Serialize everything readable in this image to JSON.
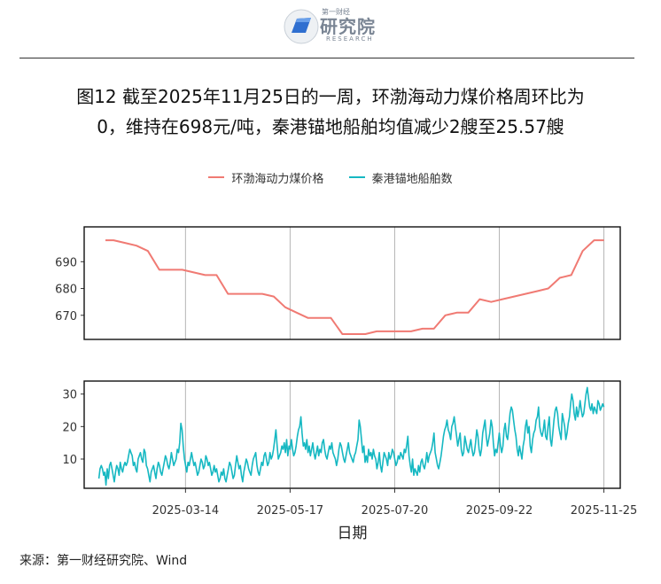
{
  "header": {
    "logo_top": "第一财经",
    "logo_cn": "研究院",
    "logo_en": "RESEARCH"
  },
  "title": {
    "line1": "图12  截至2025年11月25日的一周，环渤海动力煤价格周环比为",
    "line2": "0，维持在698元/吨，秦港锚地船舶均值减少2艘至25.57艘"
  },
  "source": "来源：第一财经研究院、Wind",
  "colors": {
    "price": "#F07A73",
    "ships": "#16B8C2",
    "grid": "#b5b5b5"
  },
  "chart_data": {
    "type": "line",
    "xlabel": "日期",
    "x_ticks": [
      "2025-03-14",
      "2025-05-17",
      "2025-07-20",
      "2025-09-22",
      "2025-11-25"
    ],
    "legend": [
      "环渤海动力煤价格",
      "秦港锚地船舶数"
    ],
    "panels": [
      {
        "series_name": "环渤海动力煤价格",
        "ylim": [
          661,
          703
        ],
        "y_ticks": [
          670,
          680,
          690
        ],
        "points": [
          [
            "2025-01-24",
            698
          ],
          [
            "2025-01-29",
            698
          ],
          [
            "2025-02-05",
            697
          ],
          [
            "2025-02-12",
            696
          ],
          [
            "2025-02-19",
            694
          ],
          [
            "2025-02-26",
            687
          ],
          [
            "2025-03-05",
            687
          ],
          [
            "2025-03-12",
            687
          ],
          [
            "2025-03-19",
            686
          ],
          [
            "2025-03-26",
            685
          ],
          [
            "2025-04-02",
            685
          ],
          [
            "2025-04-09",
            678
          ],
          [
            "2025-04-16",
            678
          ],
          [
            "2025-04-23",
            678
          ],
          [
            "2025-04-30",
            678
          ],
          [
            "2025-05-07",
            677
          ],
          [
            "2025-05-14",
            673
          ],
          [
            "2025-05-21",
            671
          ],
          [
            "2025-05-28",
            669
          ],
          [
            "2025-06-04",
            669
          ],
          [
            "2025-06-11",
            669
          ],
          [
            "2025-06-18",
            663
          ],
          [
            "2025-06-25",
            663
          ],
          [
            "2025-07-02",
            663
          ],
          [
            "2025-07-09",
            664
          ],
          [
            "2025-07-16",
            664
          ],
          [
            "2025-07-23",
            664
          ],
          [
            "2025-07-30",
            664
          ],
          [
            "2025-08-06",
            665
          ],
          [
            "2025-08-13",
            665
          ],
          [
            "2025-08-20",
            670
          ],
          [
            "2025-08-27",
            671
          ],
          [
            "2025-09-03",
            671
          ],
          [
            "2025-09-10",
            676
          ],
          [
            "2025-09-17",
            675
          ],
          [
            "2025-09-24",
            676
          ],
          [
            "2025-10-01",
            677
          ],
          [
            "2025-10-08",
            678
          ],
          [
            "2025-10-15",
            679
          ],
          [
            "2025-10-22",
            680
          ],
          [
            "2025-10-29",
            684
          ],
          [
            "2025-11-05",
            685
          ],
          [
            "2025-11-12",
            694
          ],
          [
            "2025-11-19",
            698
          ],
          [
            "2025-11-25",
            698
          ]
        ]
      },
      {
        "series_name": "秦港锚地船舶数",
        "ylim": [
          1,
          34
        ],
        "y_ticks": [
          10,
          20,
          30
        ],
        "start_date": "2025-01-20",
        "values": [
          4,
          7,
          8,
          7,
          5,
          6,
          2,
          7,
          4,
          8,
          9,
          7,
          5,
          3,
          6,
          8,
          7,
          5,
          9,
          7,
          6,
          8,
          9,
          8,
          9,
          11,
          13,
          12,
          11,
          8,
          9,
          7,
          6,
          10,
          11,
          12,
          10,
          9,
          13,
          12,
          8,
          7,
          5,
          3,
          6,
          7,
          8,
          6,
          4,
          7,
          9,
          8,
          6,
          5,
          7,
          9,
          11,
          10,
          8,
          7,
          9,
          12,
          10,
          8,
          9,
          10,
          13,
          12,
          15,
          21,
          19,
          14,
          10,
          8,
          6,
          9,
          8,
          10,
          12,
          10,
          8,
          9,
          7,
          5,
          6,
          8,
          10,
          9,
          7,
          8,
          11,
          10,
          8,
          9,
          7,
          5,
          6,
          8,
          6,
          7,
          5,
          3,
          4,
          6,
          5,
          7,
          4,
          3,
          5,
          7,
          9,
          8,
          6,
          4,
          5,
          8,
          11,
          9,
          7,
          8,
          5,
          3,
          6,
          8,
          10,
          9,
          7,
          6,
          5,
          8,
          10,
          11,
          12,
          8,
          6,
          5,
          7,
          9,
          8,
          11,
          12,
          10,
          8,
          9,
          12,
          10,
          11,
          13,
          16,
          19,
          14,
          10,
          11,
          12,
          14,
          13,
          15,
          12,
          16,
          11,
          14,
          13,
          16,
          13,
          11,
          12,
          14,
          17,
          19,
          20,
          23,
          18,
          14,
          15,
          13,
          16,
          12,
          14,
          11,
          13,
          15,
          12,
          10,
          12,
          14,
          11,
          13,
          12,
          15,
          16,
          13,
          11,
          10,
          12,
          14,
          13,
          15,
          12,
          11,
          10,
          8,
          10,
          13,
          15,
          14,
          12,
          10,
          9,
          11,
          13,
          15,
          12,
          11,
          10,
          9,
          11,
          12,
          14,
          16,
          22,
          20,
          16,
          12,
          14,
          9,
          11,
          9,
          13,
          11,
          12,
          10,
          13,
          11,
          10,
          7,
          9,
          12,
          8,
          6,
          9,
          12,
          11,
          10,
          8,
          12,
          10,
          11,
          13,
          12,
          10,
          8,
          9,
          11,
          10,
          12,
          11,
          10,
          13,
          12,
          14,
          17,
          11,
          8,
          6,
          10,
          5,
          7,
          6,
          5,
          8,
          6,
          9,
          10,
          8,
          7,
          9,
          12,
          9,
          11,
          12,
          13,
          15,
          18,
          12,
          10,
          8,
          7,
          9,
          11,
          14,
          17,
          19,
          20,
          22,
          19,
          18,
          16,
          20,
          21,
          23,
          20,
          17,
          14,
          16,
          18,
          13,
          11,
          12,
          17,
          15,
          13,
          12,
          14,
          16,
          13,
          11,
          12,
          15,
          19,
          17,
          13,
          11,
          13,
          18,
          20,
          22,
          17,
          14,
          16,
          18,
          22,
          20,
          15,
          11,
          13,
          12,
          15,
          18,
          14,
          12,
          14,
          19,
          21,
          17,
          16,
          20,
          24,
          26,
          25,
          22,
          19,
          17,
          13,
          11,
          14,
          12,
          10,
          14,
          16,
          20,
          22,
          18,
          20,
          14,
          12,
          16,
          18,
          19,
          22,
          23,
          26,
          20,
          18,
          17,
          19,
          22,
          17,
          16,
          20,
          23,
          16,
          14,
          18,
          22,
          25,
          26,
          24,
          20,
          18,
          16,
          24,
          22,
          20,
          16,
          18,
          21,
          23,
          27,
          30,
          28,
          24,
          22,
          26,
          23,
          25,
          28,
          25,
          23,
          24,
          27,
          30,
          32,
          29,
          26,
          25,
          27,
          24,
          26,
          25,
          24,
          28,
          27,
          25,
          26,
          27,
          26
        ]
      }
    ]
  }
}
